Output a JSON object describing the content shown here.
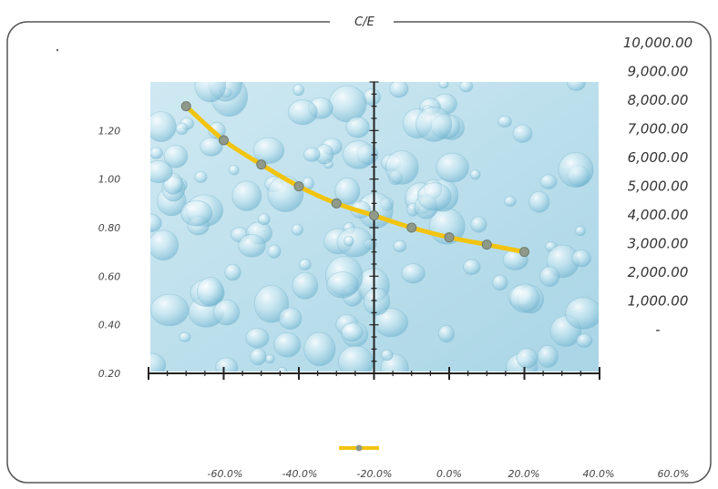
{
  "chart_data": {
    "type": "line",
    "title": "C/E",
    "x": [
      -50,
      -40,
      -30,
      -20,
      -10,
      0,
      10,
      20,
      30,
      40
    ],
    "series": [
      {
        "values": [
          1.3,
          1.16,
          1.06,
          0.97,
          0.9,
          0.85,
          0.8,
          0.76,
          0.73,
          0.7
        ]
      }
    ],
    "xlim": [
      -60,
      60
    ],
    "ylim": [
      0.2,
      1.4
    ],
    "y2lim": [
      0,
      10000
    ],
    "x_ticks": [
      "-60.0%",
      "-40.0%",
      "-20.0%",
      "0.0%",
      "20.0%",
      "40.0%",
      "60.0%"
    ],
    "y_ticks": [
      "0.20",
      "0.40",
      "0.60",
      "0.80",
      "1.00",
      "1.20"
    ],
    "y2_ticks": [
      "-",
      "1,000.00",
      "2,000.00",
      "3,000.00",
      "4,000.00",
      "5,000.00",
      "6,000.00",
      "7,000.00",
      "8,000.00",
      "9,000.00",
      "10,000.00"
    ],
    "colors": {
      "line": "#f2c40f",
      "marker": "#8f9a8a",
      "plot_bg": "#bfe2ee",
      "frame": "#555555"
    },
    "plot_background": "water-droplet texture",
    "grid": false,
    "legend": "bottom-center"
  }
}
